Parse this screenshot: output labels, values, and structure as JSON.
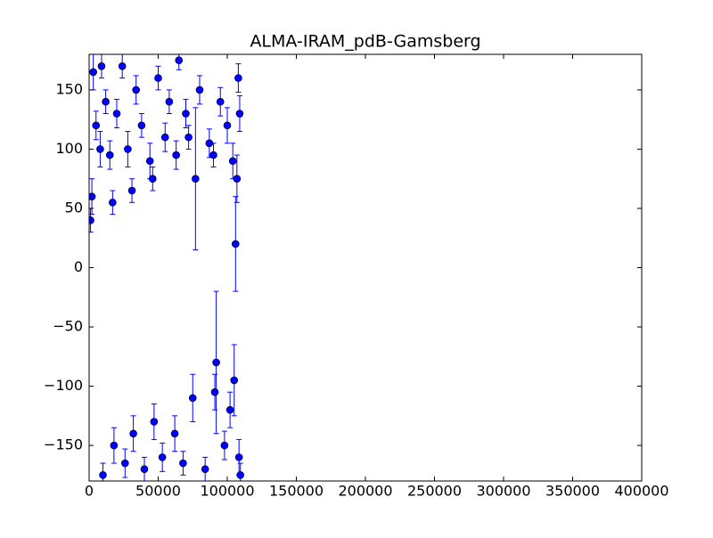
{
  "chart_data": {
    "type": "scatter",
    "title": "ALMA-IRAM_pdB-Gamsberg",
    "x": [
      1000,
      2000,
      3000,
      5000,
      8000,
      9000,
      10000,
      12000,
      15000,
      17000,
      18000,
      20000,
      24000,
      26000,
      28000,
      31000,
      32000,
      34000,
      38000,
      40000,
      44000,
      46000,
      47000,
      50000,
      53000,
      55000,
      58000,
      62000,
      63000,
      65000,
      68000,
      70000,
      72000,
      75000,
      77000,
      80000,
      84000,
      87000,
      90000,
      91000,
      92000,
      95000,
      98000,
      100000,
      102000,
      104000,
      105000,
      106000,
      107000,
      108000,
      108500,
      109000,
      109500
    ],
    "series": [
      {
        "color": "#0000ff",
        "values": [
          40,
          60,
          165,
          120,
          100,
          170,
          -175,
          140,
          95,
          55,
          -150,
          130,
          170,
          -165,
          100,
          65,
          -140,
          150,
          120,
          -170,
          90,
          75,
          -130,
          160,
          -160,
          110,
          140,
          -140,
          95,
          175,
          -165,
          130,
          110,
          -110,
          75,
          150,
          -170,
          105,
          95,
          -105,
          -80,
          140,
          -150,
          120,
          -120,
          90,
          -95,
          20,
          75,
          160,
          -160,
          130,
          -175
        ],
        "errors": [
          10,
          15,
          15,
          12,
          15,
          10,
          10,
          10,
          12,
          10,
          15,
          12,
          10,
          12,
          15,
          10,
          15,
          12,
          10,
          10,
          15,
          10,
          15,
          10,
          12,
          12,
          10,
          15,
          12,
          8,
          10,
          12,
          10,
          20,
          60,
          12,
          10,
          12,
          10,
          15,
          60,
          12,
          12,
          15,
          15,
          15,
          30,
          40,
          20,
          12,
          15,
          15,
          10
        ]
      }
    ],
    "xlim": [
      0,
      400000
    ],
    "ylim": [
      -180,
      180
    ],
    "xticks": [
      0,
      50000,
      100000,
      150000,
      200000,
      250000,
      300000,
      350000,
      400000
    ],
    "yticks": [
      {
        "value": -150,
        "label": "−150"
      },
      {
        "value": -100,
        "label": "−100"
      },
      {
        "value": -50,
        "label": "−50"
      },
      0,
      50,
      100,
      150
    ]
  }
}
